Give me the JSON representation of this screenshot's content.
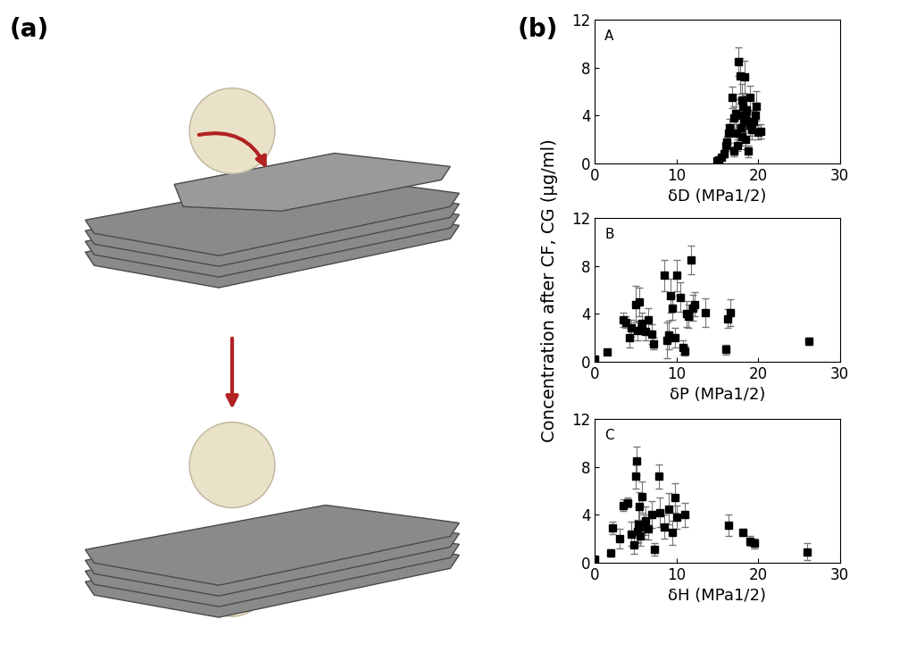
{
  "panel_labels": [
    "(a)",
    "(b)"
  ],
  "ylabel": "Concentration after CF, CG (µg/ml)",
  "chart_data": [
    {
      "type": "scatter",
      "annotation": "A",
      "xlabel": "δD (MPa1/2)",
      "xlim": [
        0,
        30
      ],
      "xticks": [
        0,
        10,
        20,
        30
      ],
      "ylim": [
        0,
        12
      ],
      "yticks": [
        0,
        4,
        8,
        12
      ],
      "marker": "square",
      "color": "#000000",
      "x": [
        14.9,
        15.2,
        15.5,
        15.8,
        16.0,
        16.2,
        16.4,
        16.5,
        16.8,
        17.0,
        17.0,
        17.2,
        17.4,
        17.5,
        17.6,
        17.8,
        17.8,
        17.9,
        18.0,
        18.0,
        18.1,
        18.2,
        18.3,
        18.4,
        18.5,
        18.6,
        18.8,
        19.0,
        19.0,
        19.2,
        19.4,
        19.6,
        19.8,
        20.0,
        20.3
      ],
      "values": [
        0.2,
        0.3,
        0.5,
        0.8,
        1.5,
        1.8,
        2.5,
        3.0,
        5.5,
        1.0,
        3.8,
        4.2,
        2.5,
        1.5,
        8.5,
        7.3,
        4.0,
        3.0,
        5.3,
        2.2,
        4.8,
        3.5,
        7.2,
        2.0,
        3.8,
        4.5,
        1.0,
        3.2,
        5.5,
        2.8,
        3.5,
        4.0,
        4.8,
        2.6,
        2.7
      ],
      "errors": [
        0.1,
        0.1,
        0.2,
        0.3,
        0.5,
        0.4,
        0.8,
        0.7,
        0.9,
        0.4,
        1.0,
        1.2,
        0.8,
        0.5,
        1.2,
        1.5,
        1.0,
        0.9,
        1.3,
        0.7,
        1.1,
        0.9,
        1.4,
        0.8,
        1.0,
        1.2,
        0.5,
        0.9,
        1.0,
        0.8,
        0.9,
        1.1,
        1.2,
        0.6,
        0.6
      ]
    },
    {
      "type": "scatter",
      "annotation": "B",
      "xlabel": "δP (MPa1/2)",
      "xlim": [
        0,
        30
      ],
      "xticks": [
        0,
        10,
        20,
        30
      ],
      "ylim": [
        0,
        12
      ],
      "yticks": [
        0,
        4,
        8,
        12
      ],
      "marker": "square",
      "color": "#000000",
      "x": [
        0,
        1.5,
        3.5,
        3.8,
        4.2,
        4.5,
        5.0,
        5.2,
        5.5,
        5.8,
        6.2,
        6.5,
        7.0,
        7.2,
        8.5,
        8.8,
        9.0,
        9.3,
        9.5,
        9.8,
        10.0,
        10.5,
        10.8,
        11.0,
        11.2,
        11.5,
        11.8,
        12.0,
        12.2,
        13.5,
        16.0,
        16.3,
        16.6,
        26.2
      ],
      "values": [
        0.2,
        0.8,
        3.5,
        3.3,
        2.0,
        2.8,
        4.8,
        2.6,
        5.0,
        3.2,
        2.5,
        3.5,
        2.3,
        1.5,
        7.2,
        1.8,
        2.2,
        5.5,
        4.5,
        2.0,
        7.2,
        5.4,
        1.2,
        0.9,
        4.0,
        3.8,
        8.5,
        4.5,
        4.8,
        4.1,
        1.0,
        3.6,
        4.1,
        1.7
      ],
      "errors": [
        0.1,
        0.2,
        0.6,
        0.5,
        0.8,
        0.7,
        1.5,
        0.8,
        1.2,
        0.9,
        0.7,
        1.0,
        0.8,
        0.5,
        1.3,
        1.5,
        1.2,
        1.4,
        1.0,
        0.8,
        1.3,
        1.2,
        0.6,
        0.4,
        1.1,
        1.0,
        1.2,
        1.1,
        1.0,
        1.2,
        0.4,
        0.8,
        1.1,
        0.3
      ]
    },
    {
      "type": "scatter",
      "annotation": "C",
      "xlabel": "δH (MPa1/2)",
      "xlim": [
        0,
        30
      ],
      "xticks": [
        0,
        10,
        20,
        30
      ],
      "ylim": [
        0,
        12
      ],
      "yticks": [
        0,
        4,
        8,
        12
      ],
      "marker": "square",
      "color": "#000000",
      "x": [
        0,
        2.0,
        2.2,
        3.0,
        3.5,
        4.0,
        4.5,
        4.8,
        5.0,
        5.1,
        5.2,
        5.3,
        5.5,
        5.6,
        5.8,
        6.0,
        6.2,
        6.5,
        7.0,
        7.3,
        7.8,
        8.0,
        8.5,
        9.0,
        9.5,
        9.8,
        10.0,
        11.0,
        16.4,
        18.1,
        19.0,
        19.5,
        26.0
      ],
      "values": [
        0.3,
        0.8,
        2.9,
        2.0,
        4.8,
        5.0,
        2.4,
        1.5,
        7.2,
        8.5,
        2.6,
        3.2,
        4.7,
        2.2,
        5.5,
        3.0,
        3.5,
        2.8,
        4.0,
        1.1,
        7.2,
        4.2,
        3.0,
        4.5,
        2.5,
        5.4,
        3.8,
        4.0,
        3.1,
        2.5,
        1.8,
        1.6,
        0.9
      ],
      "errors": [
        0.1,
        0.3,
        0.5,
        0.8,
        0.5,
        0.4,
        1.0,
        0.8,
        1.0,
        1.2,
        1.0,
        1.5,
        1.2,
        0.8,
        1.3,
        1.0,
        1.2,
        0.9,
        1.1,
        0.5,
        1.0,
        1.2,
        1.0,
        1.3,
        1.0,
        1.2,
        1.0,
        1.0,
        0.9,
        0.3,
        0.4,
        0.4,
        0.7
      ]
    }
  ]
}
